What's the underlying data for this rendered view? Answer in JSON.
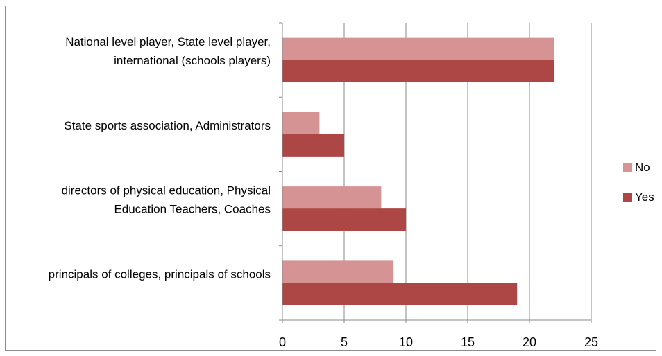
{
  "chart_data": {
    "type": "bar",
    "orientation": "horizontal",
    "categories": [
      [
        "National level player, State level player,",
        "international (schools players)"
      ],
      [
        "State sports association, Administrators"
      ],
      [
        "directors of physical education, Physical",
        "Education Teachers, Coaches"
      ],
      [
        "principals of colleges, principals of schools"
      ]
    ],
    "series": [
      {
        "name": "No",
        "color": "#D59394",
        "values": [
          22,
          3,
          8,
          9
        ]
      },
      {
        "name": "Yes",
        "color": "#AC4745",
        "values": [
          22,
          5,
          10,
          19
        ]
      }
    ],
    "xlim": [
      0,
      25
    ],
    "xticks": [
      0,
      5,
      10,
      15,
      20,
      25
    ],
    "grid": true,
    "legend_position": "right",
    "title": "",
    "xlabel": "",
    "ylabel": ""
  }
}
